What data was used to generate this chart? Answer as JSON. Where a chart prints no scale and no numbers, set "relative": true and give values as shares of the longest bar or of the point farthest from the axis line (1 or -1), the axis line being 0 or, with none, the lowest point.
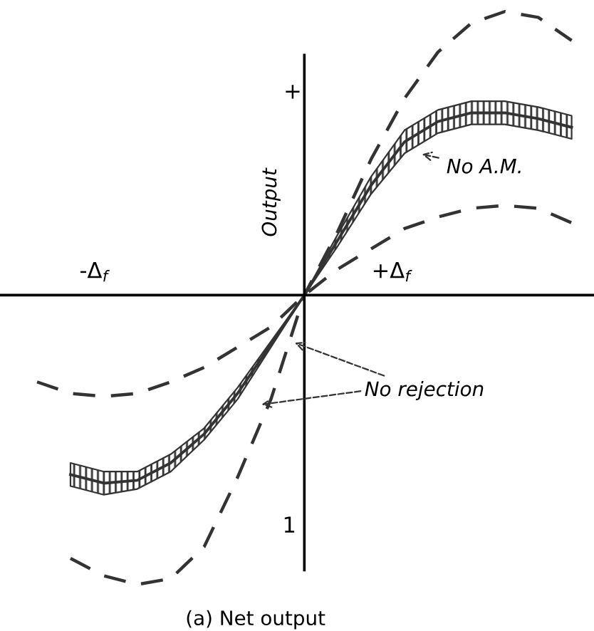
{
  "chart_data": {
    "type": "line",
    "relative": true,
    "ylabel": "Output",
    "marker": "none",
    "categories": [
      null,
      null,
      null,
      null,
      null,
      null,
      null,
      null,
      null,
      null,
      null,
      null,
      null,
      null,
      null,
      null,
      null
    ],
    "series": [
      {
        "color": "#333333",
        "line_style": "dashed",
        "values": [
          null,
          -0.91,
          -0.97,
          -1.0,
          -0.98,
          -0.87,
          -0.63,
          -0.36,
          0,
          0.22,
          0.47,
          0.68,
          0.84,
          0.94,
          0.98,
          0.96,
          0.88
        ]
      },
      {
        "color": "#333333",
        "line_style": "dashed",
        "values": [
          -0.3,
          -0.34,
          -0.35,
          -0.34,
          -0.3,
          -0.25,
          -0.18,
          -0.11,
          0,
          0.09,
          0.16,
          0.23,
          0.27,
          0.3,
          0.31,
          0.3,
          0.25
        ]
      },
      {
        "color": "#333333",
        "line_style": "solid",
        "values": [
          null,
          -0.62,
          -0.65,
          -0.64,
          -0.58,
          -0.48,
          -0.34,
          -0.17,
          0,
          0.19,
          0.38,
          0.53,
          0.6,
          0.63,
          0.63,
          0.61,
          0.58
        ],
        "lower": [
          null,
          -0.66,
          -0.69,
          -0.67,
          -0.61,
          -0.5,
          -0.36,
          -0.18,
          0,
          0.17,
          0.35,
          0.49,
          0.56,
          0.59,
          0.59,
          0.57,
          0.54
        ],
        "upper": [
          null,
          -0.58,
          -0.61,
          -0.61,
          -0.55,
          -0.46,
          -0.32,
          -0.16,
          0,
          0.21,
          0.41,
          0.57,
          0.64,
          0.67,
          0.67,
          0.65,
          0.62
        ]
      }
    ],
    "annotations": [
      "+",
      "1",
      "-Δ$_{f}$",
      "+Δ$_{f}$",
      "No A.M.",
      "No rejection",
      "(a) Net output"
    ]
  }
}
